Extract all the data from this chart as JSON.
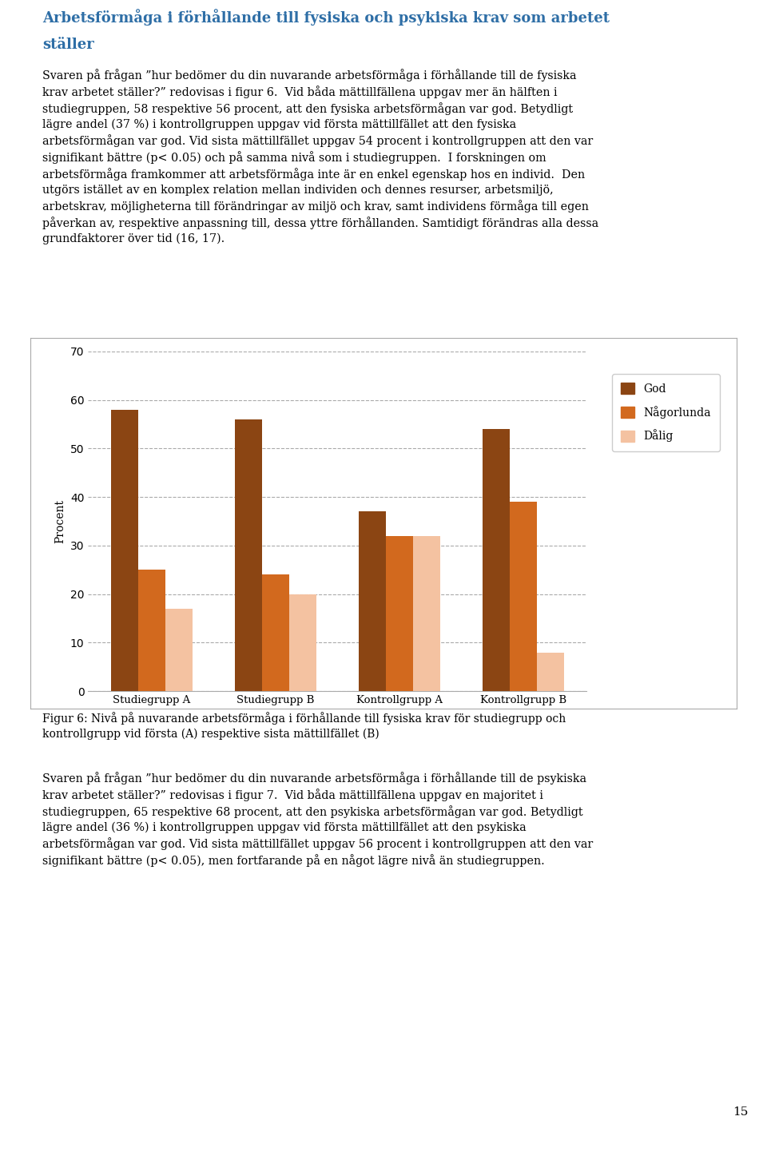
{
  "title_line1": "Arbetsförmåga i förhållande till fysiska och psykiska krav som arbetet",
  "title_line2": "ställer",
  "body_text_1": "Svaren på frågan ”hur bedömer du din nuvarande arbetsförmåga i förhållande till de fysiska\nkrav arbetet ställer?” redovisas i figur 6.  Vid båda mättillfällena uppgav mer än hälften i\nstudiegruppen, 58 respektive 56 procent, att den fysiska arbetsförmågan var god. Betydligt\nlägre andel (37 %) i kontrollgruppen uppgav vid första mättillfället att den fysiska\narbetsförmågan var god. Vid sista mättillfället uppgav 54 procent i kontrollgruppen att den var\nsignifikant bättre (p< 0.05) och på samma nivå som i studiegruppen.  I forskningen om\narbetsförmåga framkommer att arbetsförmåga inte är en enkel egenskap hos en individ.  Den\nutgörs istället av en komplex relation mellan individen och dennes resurser, arbetsmiljö,\narbetskrav, möjligheterna till förändringar av miljö och krav, samt individens förmåga till egen\npåverkan av, respektive anpassning till, dessa yttre förhållanden. Samtidigt förändras alla dessa\nrundfaktorer över tid (16, 17).",
  "categories": [
    "Studiegrupp A",
    "Studiegrupp B",
    "Kontrollgrupp A",
    "Kontrollgrupp B"
  ],
  "series_names": [
    "God",
    "Någorlunda",
    "Dålig"
  ],
  "series_values": {
    "God": [
      58,
      56,
      37,
      54
    ],
    "Någorlunda": [
      25,
      24,
      32,
      39
    ],
    "Dålig": [
      17,
      20,
      32,
      8
    ]
  },
  "colors": {
    "God": "#8B4513",
    "Någorlunda": "#D2691E",
    "Dålig": "#F4C2A1"
  },
  "ylabel": "Procent",
  "ylim": [
    0,
    70
  ],
  "yticks": [
    0,
    10,
    20,
    30,
    40,
    50,
    60,
    70
  ],
  "figure_caption_line1": "Figur 6: Nivå på nuvarande arbetsförmåga i förhållande till fysiska krav för studiegrupp och",
  "figure_caption_line2": "kontrollgrupp vid första (A) respektive sista mättillfället (B)",
  "body_text_2": "Svaren på frågan ”hur bedömer du din nuvarande arbetsförmåga i förhållande till de psykiska\nkrav arbetet ställer?” redovisas i figur 7.  Vid båda mättillfällena uppgav en majoritet i\nstudiegruppen, 65 respektive 68 procent, att den psykiska arbetsförmågan var god. Betydligt\nlägre andel (36 %) i kontrollgruppen uppgav vid första mättillfället att den psykiska\narbetsförmågan var god. Vid sista mättillfället uppgav 56 procent i kontrollgruppen att den var\nsignifikant bättre (p< 0.05), men fortfarande på en något lägre nivå än studiegruppen.",
  "page_number": "15",
  "bar_width": 0.22
}
